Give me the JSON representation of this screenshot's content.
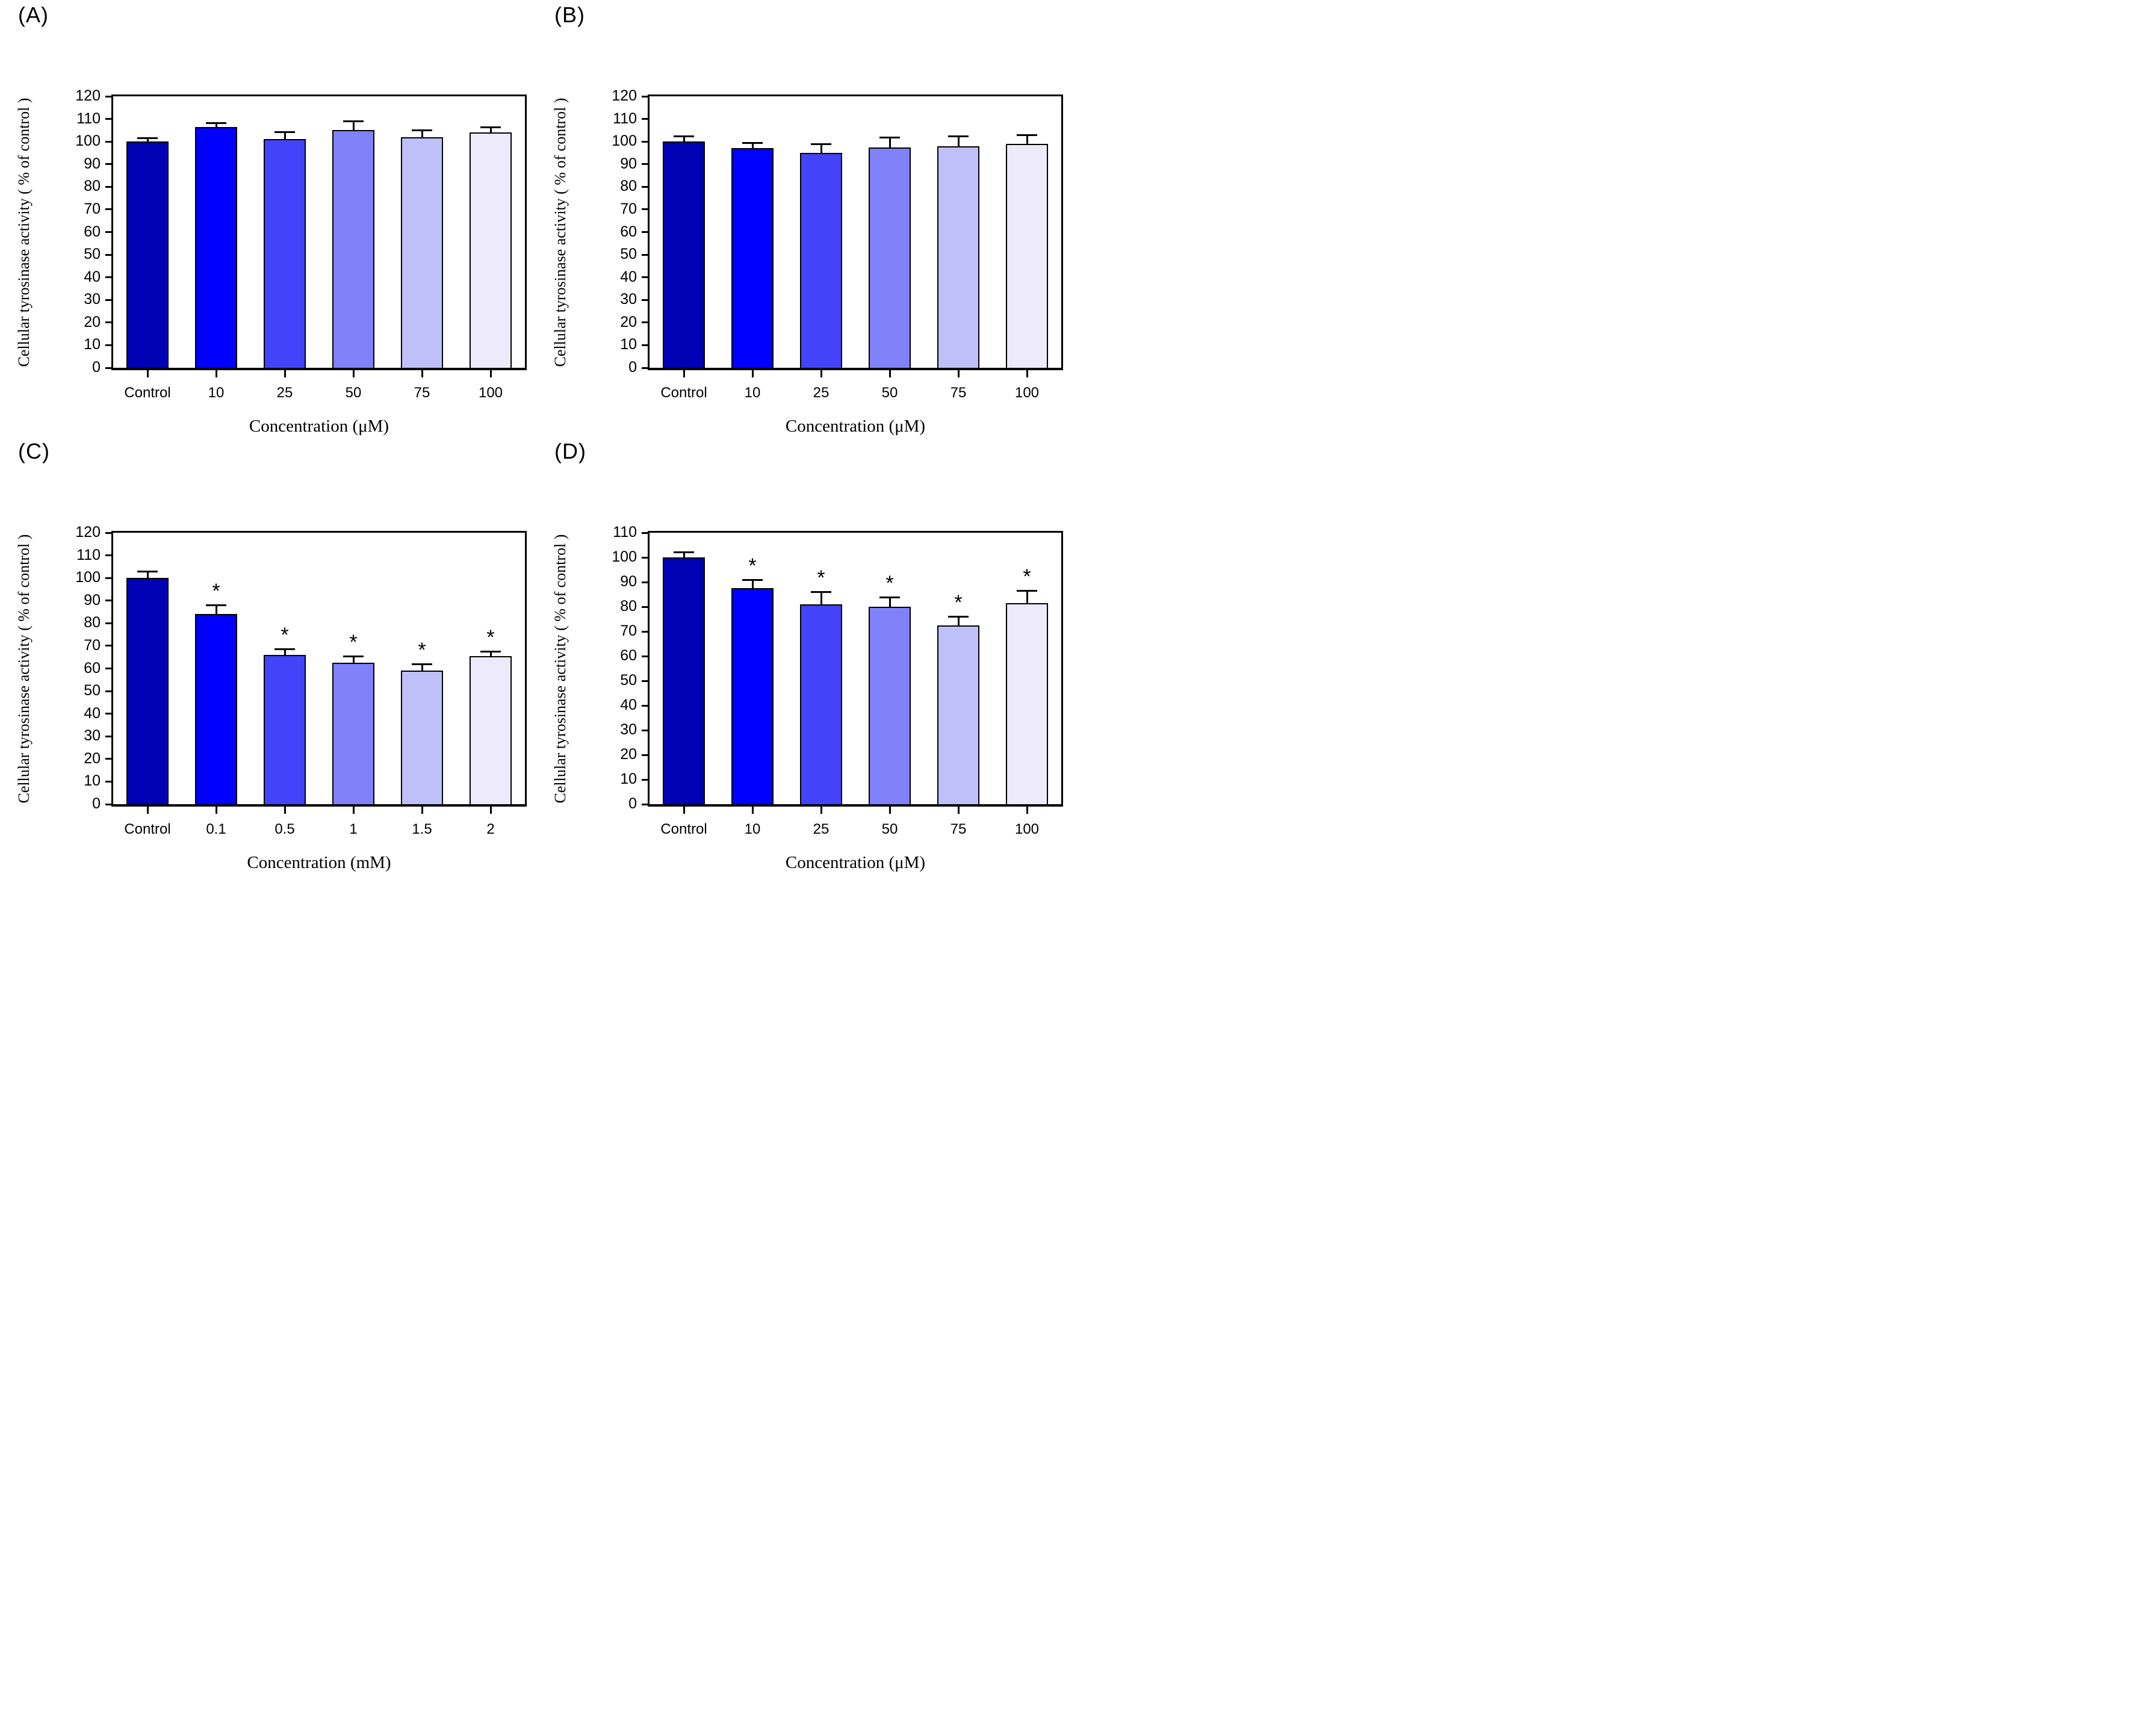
{
  "figure": {
    "background": "#ffffff",
    "axis_color": "#000000",
    "bar_border_color": "#000000",
    "bar_colors": [
      "#0000B4",
      "#0000FE",
      "#4343FA",
      "#8181FA",
      "#BFBFFA",
      "#ECEAFB"
    ],
    "significance_marker": "*"
  },
  "chart_data": [
    {
      "type": "bar",
      "panel_label": "(A)",
      "xlabel": "Concentration (μM)",
      "ylabel": "Cellular tyrosinase activity ( % of control )",
      "categories": [
        "Control",
        "10",
        "25",
        "50",
        "75",
        "100"
      ],
      "values": [
        100,
        106.5,
        101,
        105,
        102,
        104
      ],
      "errors": [
        1,
        1.3,
        2.8,
        3.5,
        2.5,
        1.8
      ],
      "significant": [
        false,
        false,
        false,
        false,
        false,
        false
      ],
      "ylim": [
        0,
        120
      ],
      "ytick_step": 10,
      "grid": false,
      "legend": "none"
    },
    {
      "type": "bar",
      "panel_label": "(B)",
      "xlabel": "Concentration (μM)",
      "ylabel": "Cellular tyrosinase activity ( % of control )",
      "categories": [
        "Control",
        "10",
        "25",
        "50",
        "75",
        "100"
      ],
      "values": [
        100,
        97,
        95,
        97.5,
        98,
        99
      ],
      "errors": [
        2,
        2,
        3.5,
        4,
        4,
        3.5
      ],
      "significant": [
        false,
        false,
        false,
        false,
        false,
        false
      ],
      "ylim": [
        0,
        120
      ],
      "ytick_step": 10,
      "grid": false,
      "legend": "none"
    },
    {
      "type": "bar",
      "panel_label": "(C)",
      "xlabel": "Concentration (mM)",
      "ylabel": "Cellular tyrosinase activity ( % of control )",
      "categories": [
        "Control",
        "0.1",
        "0.5",
        "1",
        "1.5",
        "2"
      ],
      "values": [
        100,
        84,
        66,
        62.5,
        59,
        65.5
      ],
      "errors": [
        2.5,
        3.5,
        2,
        2.5,
        2.5,
        1.5
      ],
      "significant": [
        false,
        true,
        true,
        true,
        true,
        true
      ],
      "ylim": [
        0,
        120
      ],
      "ytick_step": 10,
      "grid": false,
      "legend": "none"
    },
    {
      "type": "bar",
      "panel_label": "(D)",
      "xlabel": "Concentration (μM)",
      "ylabel": "Cellular tyrosinase activity ( % of control )",
      "categories": [
        "Control",
        "10",
        "25",
        "50",
        "75",
        "100"
      ],
      "values": [
        100,
        87.5,
        81,
        80,
        72.5,
        81.5
      ],
      "errors": [
        1.8,
        3,
        4.5,
        3.5,
        3.2,
        4.5
      ],
      "significant": [
        false,
        true,
        true,
        true,
        true,
        true
      ],
      "ylim": [
        0,
        110
      ],
      "ytick_step": 10,
      "grid": false,
      "legend": "none"
    }
  ]
}
